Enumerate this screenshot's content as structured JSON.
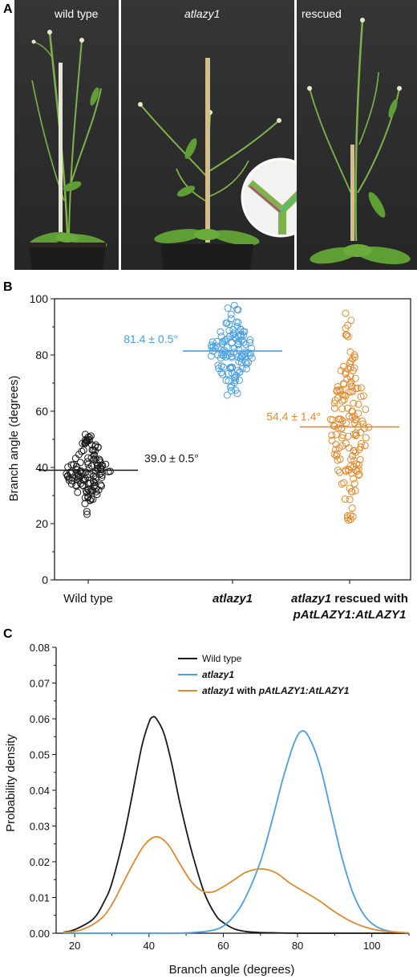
{
  "panel_a": {
    "label": "A",
    "photos": [
      {
        "caption": "wild type",
        "italic": false
      },
      {
        "caption": "atlazy1",
        "italic": true
      },
      {
        "caption": "rescued",
        "italic": false
      }
    ]
  },
  "colors": {
    "wild_type": "#1a1a1a",
    "atlazy1": "#4a9fe0",
    "rescued": "#e08a2c",
    "photo_bg": "#2e2e2e",
    "pot": "#1c1c1c",
    "stem": "#7fb24a",
    "leaf": "#5f9e34",
    "stick": "#d6be8a"
  },
  "chart_data": [
    {
      "panel_label": "B",
      "type": "scatter",
      "ylabel": "Branch angle (degrees)",
      "ylim": [
        0,
        100
      ],
      "yticks": [
        0,
        20,
        40,
        60,
        80,
        100
      ],
      "groups": [
        {
          "label": "Wild type",
          "italic": false,
          "mean": 39.0,
          "annotation": "39.0 ± 0.5°",
          "range": [
            20,
            52
          ],
          "sd": 6.5,
          "n": 130,
          "color": "#1a1a1a"
        },
        {
          "label": "atlazy1",
          "italic": true,
          "mean": 81.4,
          "annotation": "81.4 ± 0.5°",
          "range": [
            64,
            98
          ],
          "sd": 6.8,
          "n": 120,
          "color": "#4a9fe0"
        },
        {
          "label": "atlazy1 rescued with pAtLAZY1:AtLAZY1",
          "label_line1_italic": "atlazy1",
          "label_line1_rest": " rescued with",
          "label_line2_italic": "pAtLAZY1:AtLAZY1",
          "mean": 54.4,
          "annotation": "54.4 ± 1.4°",
          "range": [
            21,
            95
          ],
          "sd": 16,
          "n": 150,
          "color": "#e08a2c"
        }
      ]
    },
    {
      "panel_label": "C",
      "type": "line",
      "xlabel": "Branch angle (degrees)",
      "ylabel": "Probability density",
      "xlim": [
        15,
        110
      ],
      "ylim": [
        0,
        0.08
      ],
      "xticks": [
        20,
        40,
        60,
        80,
        100
      ],
      "yticks": [
        0.0,
        0.01,
        0.02,
        0.03,
        0.04,
        0.05,
        0.06,
        0.07,
        0.08
      ],
      "legend": "top-right",
      "series": [
        {
          "name": "Wild type",
          "color": "#1a1a1a",
          "x": [
            17,
            20,
            25,
            28,
            30,
            33,
            35,
            38,
            40,
            41,
            42,
            44,
            46,
            48,
            50,
            52,
            55,
            58,
            60,
            63,
            66,
            70,
            75,
            80,
            90,
            100,
            110
          ],
          "y": [
            0.0003,
            0.001,
            0.004,
            0.009,
            0.014,
            0.026,
            0.036,
            0.052,
            0.059,
            0.0605,
            0.06,
            0.056,
            0.048,
            0.038,
            0.029,
            0.021,
            0.011,
            0.005,
            0.003,
            0.0012,
            0.0005,
            0.0002,
            0.0001,
            0,
            0,
            0,
            0
          ]
        },
        {
          "name": "atlazy1",
          "color": "#4a9fe0",
          "x": [
            17,
            30,
            45,
            52,
            57,
            60,
            63,
            66,
            70,
            73,
            76,
            79,
            81,
            83,
            86,
            89,
            92,
            95,
            98,
            101,
            105,
            110
          ],
          "y": [
            0,
            0,
            0,
            0.0002,
            0.0008,
            0.002,
            0.005,
            0.01,
            0.02,
            0.031,
            0.043,
            0.053,
            0.0565,
            0.055,
            0.047,
            0.034,
            0.021,
            0.011,
            0.005,
            0.002,
            0.0005,
            0.0001
          ]
        },
        {
          "name": "atlazy1 with pAtLAZY1:AtLAZY1",
          "name_italic_1": "atlazy1",
          "name_rest": " with ",
          "name_italic_2": "pAtLAZY1:AtLAZY1",
          "color": "#e08a2c",
          "x": [
            17,
            22,
            27,
            30,
            33,
            36,
            39,
            42,
            45,
            48,
            51,
            54,
            57,
            60,
            63,
            66,
            70,
            74,
            78,
            82,
            86,
            90,
            95,
            100,
            105,
            110
          ],
          "y": [
            0.0002,
            0.001,
            0.004,
            0.008,
            0.014,
            0.02,
            0.025,
            0.027,
            0.025,
            0.02,
            0.015,
            0.012,
            0.0115,
            0.013,
            0.015,
            0.017,
            0.018,
            0.017,
            0.014,
            0.0115,
            0.009,
            0.006,
            0.003,
            0.0012,
            0.0004,
            0.0001
          ]
        }
      ]
    }
  ]
}
